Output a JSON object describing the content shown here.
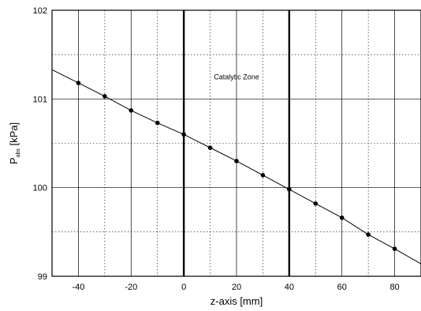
{
  "chart_data": {
    "type": "line",
    "x": [
      -50,
      -40,
      -30,
      -20,
      -10,
      0,
      10,
      20,
      30,
      40,
      50,
      60,
      70,
      80,
      90
    ],
    "series": [
      {
        "values": [
          101.33,
          101.18,
          101.03,
          100.87,
          100.73,
          100.6,
          100.45,
          100.3,
          100.14,
          99.98,
          99.82,
          99.66,
          99.47,
          99.31,
          99.14
        ],
        "markers": [
          false,
          true,
          true,
          true,
          true,
          true,
          true,
          true,
          true,
          true,
          true,
          true,
          true,
          true,
          false
        ],
        "color": "#000000"
      }
    ],
    "xlim": [
      -50,
      90
    ],
    "ylim": [
      99,
      102
    ],
    "xticks": [
      -40,
      -20,
      0,
      20,
      40,
      60,
      80
    ],
    "yticks": [
      99,
      100,
      101,
      102
    ],
    "xminor": [
      -50,
      -30,
      -10,
      10,
      30,
      50,
      70,
      90
    ],
    "yminor": [
      99.5,
      100.5,
      101.5
    ],
    "xlabel": "z-axis [mm]",
    "ylabel": {
      "main": "P",
      "sub": "abs",
      "unit": " [kPa]"
    },
    "vlines": [
      0,
      40
    ],
    "annotations": [
      {
        "text": "Catalytic Zone",
        "x": 20,
        "y": 101.25
      }
    ],
    "grid": true
  }
}
